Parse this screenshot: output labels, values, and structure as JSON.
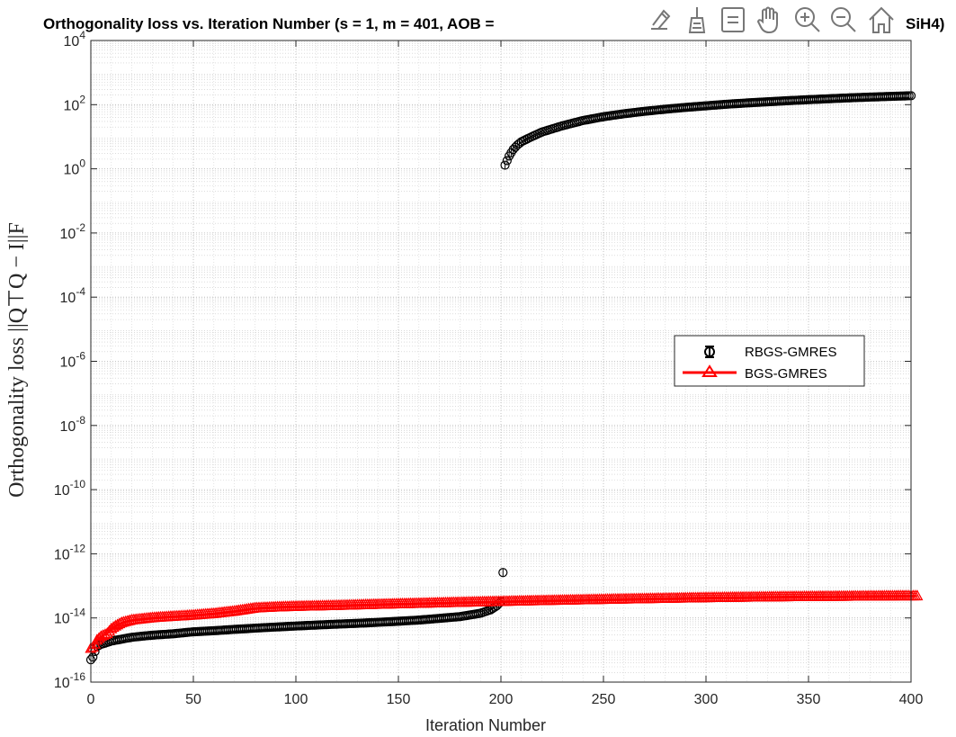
{
  "toolbar": {
    "buttons": [
      {
        "name": "edit-plot-icon"
      },
      {
        "name": "data-brush-icon"
      },
      {
        "name": "data-tips-icon"
      },
      {
        "name": "pan-hand-icon"
      },
      {
        "name": "zoom-in-icon"
      },
      {
        "name": "zoom-out-icon"
      },
      {
        "name": "home-restore-view-icon"
      }
    ]
  },
  "chart_data": {
    "type": "scatter",
    "title_left": "Orthogonality loss vs. Iteration Number (s = 1, m = 401, AOB =",
    "title_right": "SiH4)",
    "xlabel": "Iteration Number",
    "ylabel": "Orthogonality loss ||Q⊤Q − I||F",
    "xlim": [
      0,
      400
    ],
    "ylim": [
      1e-16,
      10000.0
    ],
    "yscale": "log",
    "grid": true,
    "minor_grid": true,
    "xticks": [
      0,
      50,
      100,
      150,
      200,
      250,
      300,
      350,
      400
    ],
    "yticks": [
      -16,
      -14,
      -12,
      -10,
      -8,
      -6,
      -4,
      -2,
      0,
      2,
      4
    ],
    "legend": {
      "location": "east",
      "entries": [
        "RBGS-GMRES",
        "BGS-GMRES"
      ]
    },
    "series": [
      {
        "name": "RBGS-GMRES",
        "color": "#000000",
        "marker": "circle",
        "points": [
          [
            0,
            5e-16
          ],
          [
            1,
            6e-16
          ],
          [
            2,
            9e-16
          ],
          [
            3,
            1.3e-15
          ],
          [
            5,
            1.5e-15
          ],
          [
            10,
            1.9e-15
          ],
          [
            20,
            2.5e-15
          ],
          [
            30,
            2.9e-15
          ],
          [
            40,
            3.2e-15
          ],
          [
            50,
            3.7e-15
          ],
          [
            60,
            4e-15
          ],
          [
            70,
            4.4e-15
          ],
          [
            80,
            4.8e-15
          ],
          [
            90,
            5.2e-15
          ],
          [
            100,
            5.6e-15
          ],
          [
            110,
            6e-15
          ],
          [
            120,
            6.4e-15
          ],
          [
            130,
            6.8e-15
          ],
          [
            140,
            7.3e-15
          ],
          [
            150,
            7.9e-15
          ],
          [
            160,
            8.6e-15
          ],
          [
            170,
            9.7e-15
          ],
          [
            180,
            1.1e-14
          ],
          [
            190,
            1.4e-14
          ],
          [
            195,
            1.8e-14
          ],
          [
            198,
            2.4e-14
          ],
          [
            200,
            3.3e-14
          ],
          [
            201,
            2.6e-13
          ],
          [
            202,
            1.3
          ],
          [
            204,
            2.5
          ],
          [
            206,
            4.0
          ],
          [
            208,
            5.5
          ],
          [
            210,
            7.0
          ],
          [
            215,
            10
          ],
          [
            220,
            14
          ],
          [
            230,
            22
          ],
          [
            240,
            32
          ],
          [
            250,
            42
          ],
          [
            260,
            52
          ],
          [
            270,
            62
          ],
          [
            280,
            72
          ],
          [
            290,
            82
          ],
          [
            300,
            92
          ],
          [
            310,
            103
          ],
          [
            320,
            113
          ],
          [
            330,
            123
          ],
          [
            340,
            133
          ],
          [
            350,
            143
          ],
          [
            360,
            153
          ],
          [
            370,
            163
          ],
          [
            380,
            172
          ],
          [
            390,
            181
          ],
          [
            400,
            190
          ]
        ]
      },
      {
        "name": "BGS-GMRES",
        "color": "#ff0000",
        "marker": "triangle",
        "points": [
          [
            0,
            1.1e-15
          ],
          [
            1,
            1.2e-15
          ],
          [
            2,
            1.5e-15
          ],
          [
            3,
            2e-15
          ],
          [
            5,
            2.6e-15
          ],
          [
            8,
            3.2e-15
          ],
          [
            10,
            4.5e-15
          ],
          [
            12,
            5.5e-15
          ],
          [
            15,
            7e-15
          ],
          [
            20,
            8.5e-15
          ],
          [
            30,
            1e-14
          ],
          [
            40,
            1.1e-14
          ],
          [
            50,
            1.2e-14
          ],
          [
            60,
            1.35e-14
          ],
          [
            70,
            1.6e-14
          ],
          [
            80,
            2e-14
          ],
          [
            90,
            2.15e-14
          ],
          [
            100,
            2.25e-14
          ],
          [
            120,
            2.4e-14
          ],
          [
            140,
            2.6e-14
          ],
          [
            160,
            2.8e-14
          ],
          [
            180,
            3e-14
          ],
          [
            200,
            3.2e-14
          ],
          [
            220,
            3.4e-14
          ],
          [
            240,
            3.6e-14
          ],
          [
            260,
            3.8e-14
          ],
          [
            280,
            4e-14
          ],
          [
            300,
            4.2e-14
          ],
          [
            320,
            4.35e-14
          ],
          [
            340,
            4.5e-14
          ],
          [
            360,
            4.6e-14
          ],
          [
            380,
            4.7e-14
          ],
          [
            400,
            4.8e-14
          ],
          [
            403,
            4.8e-14
          ]
        ]
      }
    ]
  }
}
